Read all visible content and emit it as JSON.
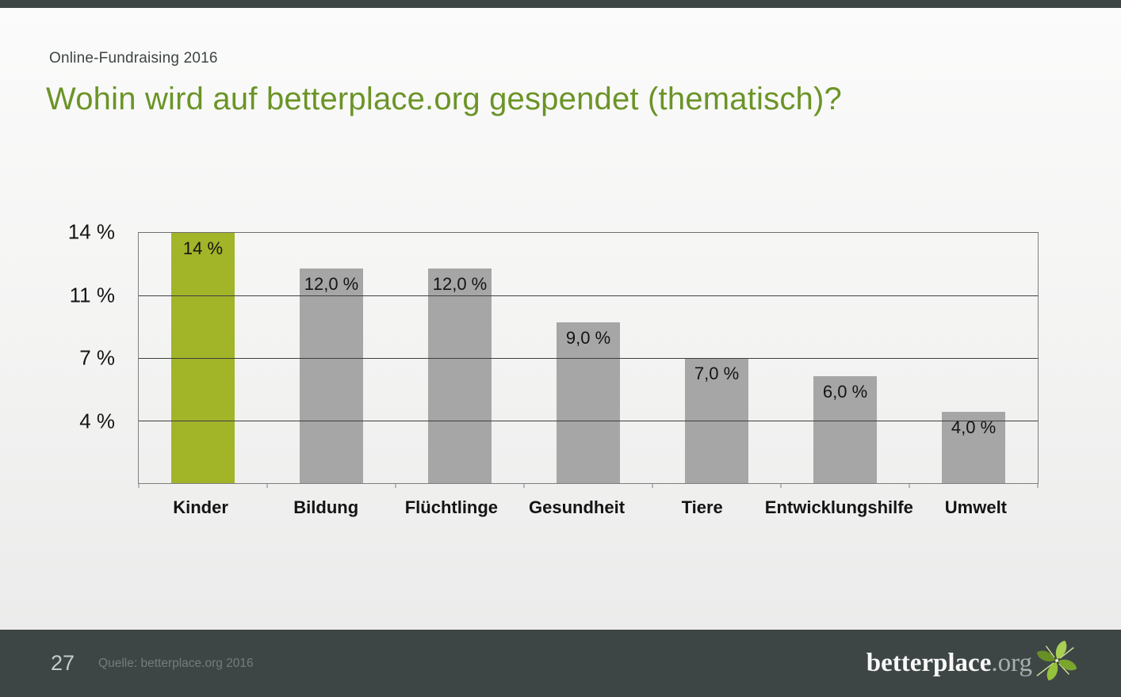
{
  "slide": {
    "eyebrow": "Online-Fundraising 2016",
    "title": "Wohin wird auf betterplace.org gespendet (thematisch)?"
  },
  "chart_data": {
    "type": "bar",
    "title": "Wohin wird auf betterplace.org gespendet (thematisch)?",
    "categories": [
      "Kinder",
      "Bildung",
      "Flüchtlinge",
      "Gesundheit",
      "Tiere",
      "Entwicklungshilfe",
      "Umwelt"
    ],
    "values": [
      14,
      12,
      12,
      9,
      7,
      6,
      4
    ],
    "value_labels": [
      "14 %",
      "12,0 %",
      "12,0 %",
      "9,0 %",
      "7,0 %",
      "6,0 %",
      "4,0 %"
    ],
    "y_tick_labels": [
      "14 %",
      "11 %",
      "7 %",
      "4 %"
    ],
    "y_tick_values": [
      14,
      10.5,
      7,
      3.5
    ],
    "ylim": [
      0,
      14
    ],
    "xlabel": "",
    "ylabel": "",
    "grid": true,
    "legend_position": "none",
    "highlight_index": 0,
    "highlight_color": "#a2b428",
    "bar_color": "#a6a6a6"
  },
  "footer": {
    "page_number": "27",
    "source": "Quelle: betterplace.org 2016",
    "logo_main": "betterplace",
    "logo_suffix": ".org",
    "logo_icon": "pinwheel-star-icon",
    "background_color": "#3e4645"
  }
}
